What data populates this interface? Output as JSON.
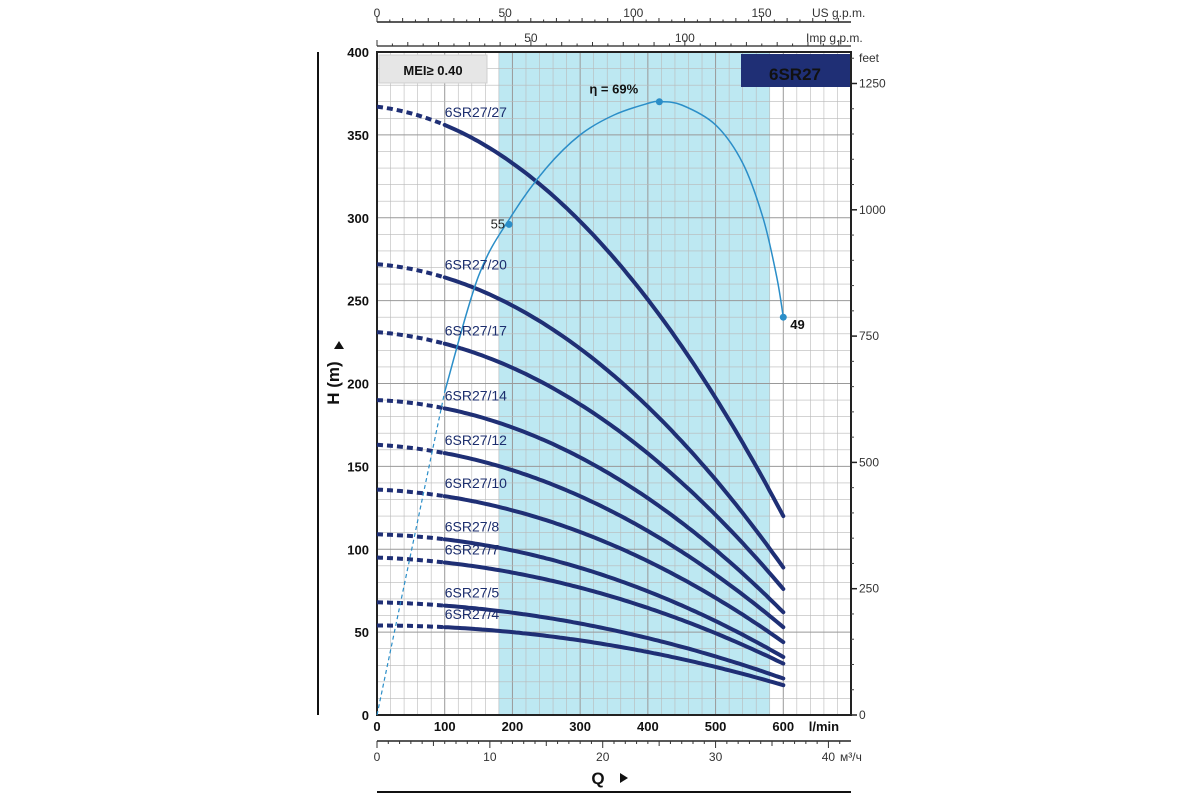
{
  "chart_data": {
    "type": "line",
    "badge": "6SR27",
    "mei_label": "MEI≥ 0.40",
    "x_axis": {
      "title": "Q",
      "unit": "l/min",
      "range": [
        0,
        700
      ],
      "ticks": [
        0,
        100,
        200,
        300,
        400,
        500,
        600
      ],
      "best_range": [
        180,
        580
      ]
    },
    "y_axis": {
      "title": "H  (m)",
      "range": [
        0,
        400
      ],
      "ticks": [
        0,
        50,
        100,
        150,
        200,
        250,
        300,
        350,
        400
      ]
    },
    "right_axis": {
      "unit": "feet",
      "ticks": [
        0,
        250,
        500,
        750,
        1000,
        1250
      ]
    },
    "top_axis_us": {
      "unit": "US g.p.m.",
      "ticks": [
        0,
        50,
        100,
        150
      ]
    },
    "top_axis_imp": {
      "unit": "Imp g.p.m.",
      "ticks": [
        50,
        100
      ]
    },
    "bottom_axis_m3h": {
      "unit": "м³/ч",
      "ticks": [
        0,
        10,
        20,
        30,
        40
      ]
    },
    "efficiency": {
      "peak_label": "η = 69%",
      "left_label": "55",
      "right_label": "49",
      "points": [
        [
          0,
          0
        ],
        [
          100,
          195
        ],
        [
          150,
          265
        ],
        [
          200,
          302
        ],
        [
          250,
          330
        ],
        [
          300,
          350
        ],
        [
          350,
          362
        ],
        [
          400,
          369
        ],
        [
          417,
          370
        ],
        [
          450,
          368
        ],
        [
          500,
          356
        ],
        [
          540,
          333
        ],
        [
          570,
          300
        ],
        [
          590,
          265
        ],
        [
          600,
          240
        ]
      ],
      "markers": [
        [
          195,
          296
        ],
        [
          417,
          370
        ],
        [
          600,
          240
        ]
      ]
    },
    "series": [
      {
        "name": "6SR27/27",
        "h0": 367,
        "h100": 356,
        "h600": 120
      },
      {
        "name": "6SR27/20",
        "h0": 272,
        "h100": 264,
        "h600": 89
      },
      {
        "name": "6SR27/17",
        "h0": 231,
        "h100": 224,
        "h600": 76
      },
      {
        "name": "6SR27/14",
        "h0": 190,
        "h100": 185,
        "h600": 62
      },
      {
        "name": "6SR27/12",
        "h0": 163,
        "h100": 158,
        "h600": 53
      },
      {
        "name": "6SR27/10",
        "h0": 136,
        "h100": 132,
        "h600": 44
      },
      {
        "name": "6SR27/8",
        "h0": 109,
        "h100": 106,
        "h600": 35
      },
      {
        "name": "6SR27/7",
        "h0": 95,
        "h100": 92,
        "h600": 31
      },
      {
        "name": "6SR27/5",
        "h0": 68,
        "h100": 66,
        "h600": 22
      },
      {
        "name": "6SR27/4",
        "h0": 54,
        "h100": 53,
        "h600": 18
      }
    ],
    "colors": {
      "curve": "#1f2f75",
      "efficiency": "#2b8ec8",
      "band": "#bde8f2",
      "badge_bg": "#1f2f75",
      "grid": "#b9b9b9"
    }
  }
}
